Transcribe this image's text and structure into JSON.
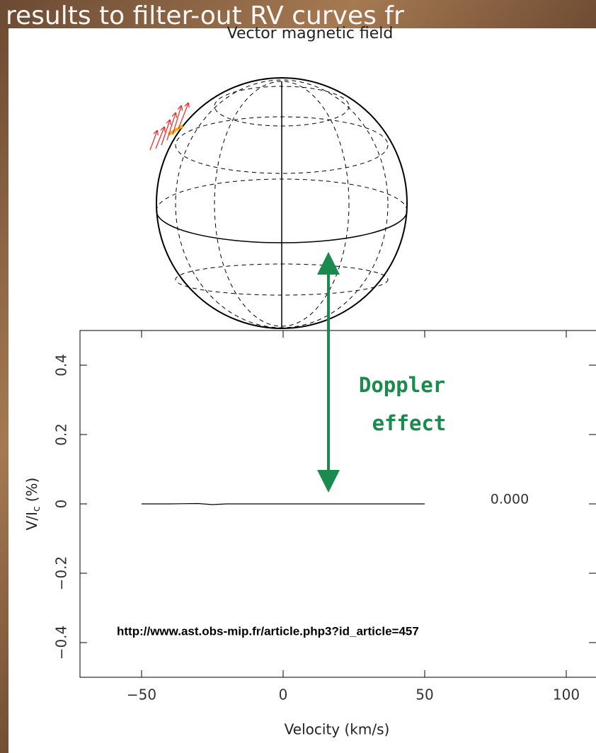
{
  "slide_banner": "results to filter-out RV curves fr",
  "figure_title": "Vector magnetic field",
  "annotation": "Doppler effect",
  "source_url": "http://www.ast.obs-mip.fr/article.php3?id_article=457",
  "chart_data": {
    "type": "line",
    "xlabel": "Velocity (km/s)",
    "ylabel": "V/I",
    "ylabel_sub": "c",
    "ylabel_unit": "(%)",
    "phase_label": "0.000",
    "series": [
      {
        "color": "#000000",
        "x": [
          -50,
          -40,
          -30,
          -25,
          -20,
          -10,
          0,
          10,
          20,
          30,
          40,
          50
        ],
        "values": [
          0,
          0,
          0.001,
          -0.002,
          0,
          0,
          0,
          0,
          0,
          0,
          0,
          0
        ]
      }
    ],
    "xlim": [
      -73,
      113
    ],
    "ylim": [
      -0.5,
      0.5
    ],
    "xticks": [
      {
        "value": -50,
        "label": "−50"
      },
      0,
      50,
      100
    ],
    "yticks": [
      {
        "value": -0.4,
        "label": "−0.4"
      },
      {
        "value": -0.2,
        "label": "−0.2"
      },
      0,
      0.2,
      0.4
    ]
  }
}
